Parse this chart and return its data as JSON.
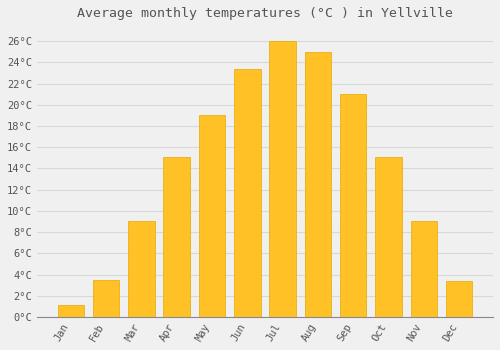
{
  "months": [
    "Jan",
    "Feb",
    "Mar",
    "Apr",
    "May",
    "Jun",
    "Jul",
    "Aug",
    "Sep",
    "Oct",
    "Nov",
    "Dec"
  ],
  "values": [
    1.1,
    3.5,
    9.0,
    15.1,
    19.0,
    23.4,
    26.0,
    25.0,
    21.0,
    15.1,
    9.0,
    3.4
  ],
  "bar_color": "#FFC125",
  "bar_edge_color": "#E8A800",
  "title": "Average monthly temperatures (°C ) in Yellville",
  "title_fontsize": 9.5,
  "yticks": [
    0,
    2,
    4,
    6,
    8,
    10,
    12,
    14,
    16,
    18,
    20,
    22,
    24,
    26
  ],
  "ylim": [
    0,
    27.5
  ],
  "background_color": "#f0f0f0",
  "grid_color": "#d8d8d8",
  "font_color": "#555555",
  "font_size": 7.5
}
